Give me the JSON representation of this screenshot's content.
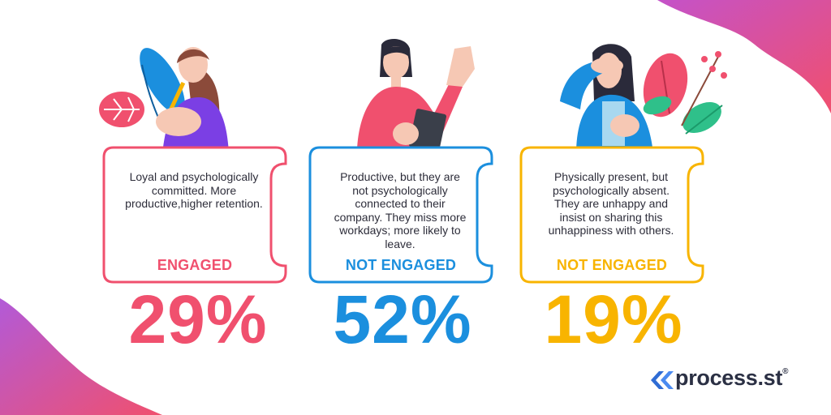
{
  "colors": {
    "pink": "#f0506e",
    "blue": "#1b8fde",
    "yellow": "#f8b400",
    "text": "#2d2d3a",
    "logo_blue": "#2f6cd4",
    "logo_text": "#2b3044"
  },
  "cards": [
    {
      "description": "Loyal and psychologically committed. More productive,higher retention.",
      "status": "ENGAGED",
      "percent": "29%",
      "color": "#f0506e"
    },
    {
      "description": "Productive, but they are not psychologically connected to their company. They miss more workdays; more likely to leave.",
      "status": "NOT ENGAGED",
      "percent": "52%",
      "color": "#1b8fde"
    },
    {
      "description": "Physically present, but psychologically absent. They are unhappy and insist on sharing this unhappiness with others.",
      "status": "NOT ENGAGED",
      "percent": "19%",
      "color": "#f8b400"
    }
  ],
  "logo": {
    "brand": "process.st",
    "mark": "®"
  }
}
